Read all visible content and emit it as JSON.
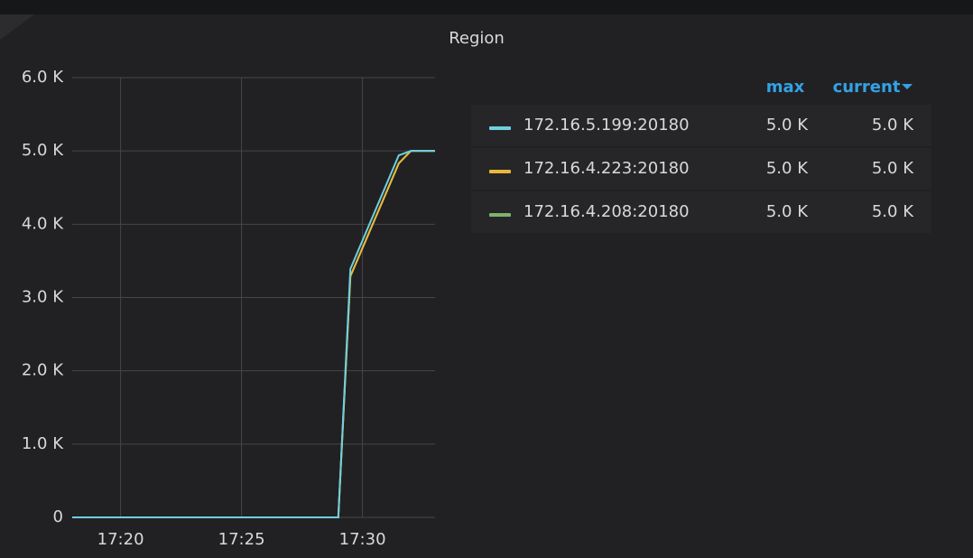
{
  "chart_data": {
    "type": "line",
    "title": "Region",
    "x": [
      1038,
      1049,
      1049.5,
      1051.5,
      1052,
      1053
    ],
    "xlim": [
      1038,
      1053
    ],
    "xticks": [
      {
        "value": 1040,
        "label": "17:20"
      },
      {
        "value": 1045,
        "label": "17:25"
      },
      {
        "value": 1050,
        "label": "17:30"
      }
    ],
    "ylim": [
      0,
      6000
    ],
    "yticks": [
      0,
      {
        "value": 1000,
        "label": "1.0 K"
      },
      {
        "value": 2000,
        "label": "2.0 K"
      },
      {
        "value": 3000,
        "label": "3.0 K"
      },
      {
        "value": 4000,
        "label": "4.0 K"
      },
      {
        "value": 5000,
        "label": "5.0 K"
      },
      {
        "value": 6000,
        "label": "6.0 K"
      }
    ],
    "grid": true,
    "legend_columns": [
      "max",
      "current"
    ],
    "series": [
      {
        "name": "172.16.5.199:20180",
        "color": "#6ed0e0",
        "values": [
          0,
          0,
          3390,
          4940,
          5000,
          5000
        ],
        "legend_values": [
          5000,
          5000
        ],
        "legend_value_labels": [
          "5.0 K",
          "5.0 K"
        ]
      },
      {
        "name": "172.16.4.223:20180",
        "color": "#eab839",
        "values": [
          0,
          0,
          3290,
          4830,
          5000,
          5000
        ],
        "legend_values": [
          5000,
          5000
        ],
        "legend_value_labels": [
          "5.0 K",
          "5.0 K"
        ]
      },
      {
        "name": "172.16.4.208:20180",
        "color": "#7eb26d",
        "values": [
          0,
          0,
          3290,
          4830,
          5000,
          5000
        ],
        "legend_values": [
          5000,
          5000
        ],
        "legend_value_labels": [
          "5.0 K",
          "5.0 K"
        ]
      }
    ]
  }
}
